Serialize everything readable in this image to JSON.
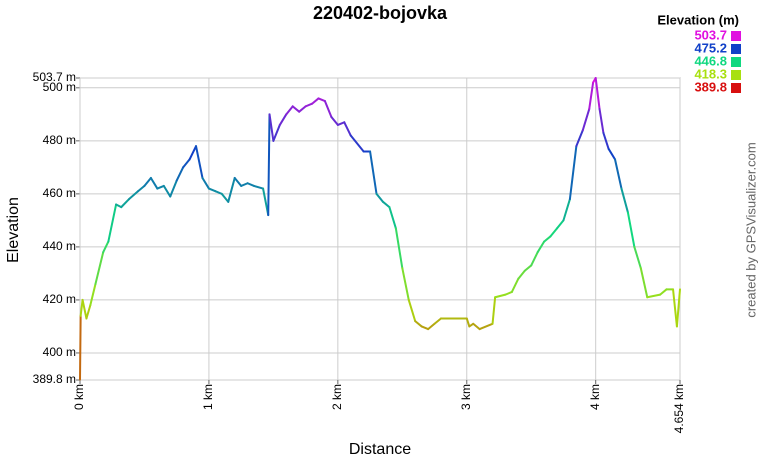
{
  "chart_data": {
    "type": "line",
    "title": "220402-bojovka",
    "x_label": "Distance",
    "y_label": "Elevation",
    "credit": "created by GPSVisualizer.com",
    "legend_title": "Elevation (m)",
    "color_scale": [
      {
        "value": 503.7,
        "color": "#e010e0"
      },
      {
        "value": 475.2,
        "color": "#1040c8"
      },
      {
        "value": 446.8,
        "color": "#10d880"
      },
      {
        "value": 418.3,
        "color": "#a8e010"
      },
      {
        "value": 389.8,
        "color": "#d81010"
      }
    ],
    "xlim": [
      0,
      4.654
    ],
    "ylim": [
      389.8,
      503.7
    ],
    "xticks": [
      {
        "value": 0,
        "label": "0 km"
      },
      {
        "value": 1,
        "label": "1 km"
      },
      {
        "value": 2,
        "label": "2 km"
      },
      {
        "value": 3,
        "label": "3 km"
      },
      {
        "value": 4,
        "label": "4 km"
      },
      {
        "value": 4.654,
        "label": "4.654 km"
      }
    ],
    "yticks": [
      {
        "value": 389.8,
        "label": "389.8 m"
      },
      {
        "value": 400,
        "label": "400 m"
      },
      {
        "value": 420,
        "label": "420 m"
      },
      {
        "value": 440,
        "label": "440 m"
      },
      {
        "value": 460,
        "label": "460 m"
      },
      {
        "value": 480,
        "label": "480 m"
      },
      {
        "value": 500,
        "label": "500 m"
      },
      {
        "value": 503.7,
        "label": "503.7 m"
      }
    ],
    "grid": true,
    "x": [
      0,
      0.005,
      0.02,
      0.05,
      0.08,
      0.12,
      0.18,
      0.22,
      0.28,
      0.32,
      0.38,
      0.45,
      0.5,
      0.55,
      0.6,
      0.65,
      0.7,
      0.75,
      0.8,
      0.85,
      0.9,
      0.95,
      1.0,
      1.05,
      1.1,
      1.15,
      1.2,
      1.25,
      1.3,
      1.35,
      1.42,
      1.46,
      1.47,
      1.5,
      1.55,
      1.6,
      1.65,
      1.7,
      1.75,
      1.8,
      1.85,
      1.9,
      1.95,
      2.0,
      2.05,
      2.1,
      2.2,
      2.25,
      2.3,
      2.35,
      2.4,
      2.45,
      2.5,
      2.55,
      2.6,
      2.65,
      2.7,
      2.75,
      2.8,
      2.9,
      3.0,
      3.02,
      3.05,
      3.1,
      3.2,
      3.22,
      3.3,
      3.35,
      3.4,
      3.45,
      3.5,
      3.55,
      3.6,
      3.65,
      3.7,
      3.75,
      3.8,
      3.85,
      3.9,
      3.95,
      3.98,
      4.0,
      4.03,
      4.06,
      4.1,
      4.15,
      4.2,
      4.25,
      4.3,
      4.35,
      4.4,
      4.5,
      4.55,
      4.6,
      4.63,
      4.654
    ],
    "values": [
      390,
      414,
      420,
      413,
      418,
      426,
      438,
      442,
      456,
      455,
      458,
      461,
      463,
      466,
      462,
      463,
      459,
      465,
      470,
      473,
      478,
      466,
      462,
      461,
      460,
      457,
      466,
      463,
      464,
      463,
      462,
      452,
      490,
      480,
      486,
      490,
      493,
      491,
      493,
      494,
      496,
      495,
      489,
      486,
      487,
      482,
      476,
      476,
      460,
      457,
      455,
      447,
      432,
      420,
      412,
      410,
      409,
      411,
      413,
      413,
      413,
      410,
      411,
      409,
      411,
      421,
      422,
      423,
      428,
      431,
      433,
      438,
      442,
      444,
      447,
      450,
      458,
      478,
      484,
      492,
      502,
      503.7,
      492,
      483,
      477,
      473,
      462,
      453,
      440,
      432,
      421,
      422,
      424,
      424,
      410,
      424
    ]
  }
}
